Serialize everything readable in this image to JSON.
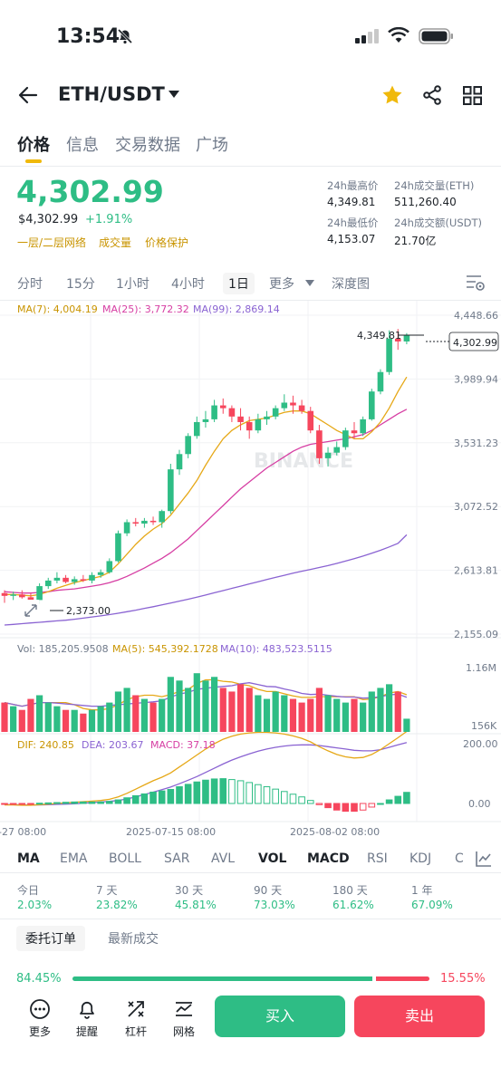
{
  "status": {
    "time": "13:54"
  },
  "header": {
    "pair": "ETH/USDT"
  },
  "tabs": [
    "价格",
    "信息",
    "交易数据",
    "广场"
  ],
  "price": {
    "last": "4,302.99",
    "usd": "$4,302.99",
    "change": "+1.91%",
    "links": [
      "一层/二层网络",
      "成交量",
      "价格保护"
    ]
  },
  "stats": {
    "high_label": "24h最高价",
    "high": "4,349.81",
    "vol_label": "24h成交量(ETH)",
    "vol": "511,260.40",
    "low_label": "24h最低价",
    "low": "4,153.07",
    "amount_label": "24h成交额(USDT)",
    "amount": "21.70亿"
  },
  "timeframes": [
    "分时",
    "15分",
    "1小时",
    "4小时",
    "1日",
    "更多",
    "深度图"
  ],
  "active_timeframe": "1日",
  "chart_legend": {
    "ma7": "MA(7): 4,004.19",
    "ma25": "MA(25): 3,772.32",
    "ma99": "MA(99): 2,869.14",
    "vol": "Vol: 185,205.9508",
    "vol_ma5": "MA(5): 545,392.1728",
    "vol_ma10": "MA(10): 483,523.5115",
    "dif": "DIF: 240.85",
    "dea": "DEA: 203.67",
    "macd": "MACD: 37.18"
  },
  "chart_labels": {
    "watermark": "BINANCE",
    "high_marker": "4,349.81",
    "low_marker": "2,373.00",
    "current": "4,302.99",
    "x_left": "-27 08:00",
    "x_mid": "2025-07-15 08:00",
    "x_right": "2025-08-02 08:00"
  },
  "chart_data": {
    "type": "candlestick",
    "y_ticks": [
      "4,448.66",
      "3,989.94",
      "3,531.23",
      "3,072.52",
      "2,613.81",
      "2,155.09"
    ],
    "y_range": [
      2155.09,
      4448.66
    ],
    "vol_ticks": [
      "1.16M",
      "156K"
    ],
    "macd_ticks": [
      "200.00",
      "0.00"
    ],
    "candles": [
      [
        2450,
        2470,
        2380,
        2430
      ],
      [
        2430,
        2460,
        2400,
        2440
      ],
      [
        2440,
        2470,
        2410,
        2420
      ],
      [
        2420,
        2450,
        2390,
        2400
      ],
      [
        2400,
        2520,
        2373,
        2500
      ],
      [
        2500,
        2560,
        2480,
        2540
      ],
      [
        2540,
        2600,
        2520,
        2560
      ],
      [
        2560,
        2580,
        2520,
        2530
      ],
      [
        2530,
        2570,
        2510,
        2550
      ],
      [
        2550,
        2580,
        2530,
        2540
      ],
      [
        2540,
        2600,
        2520,
        2580
      ],
      [
        2580,
        2620,
        2560,
        2600
      ],
      [
        2600,
        2700,
        2590,
        2680
      ],
      [
        2680,
        2900,
        2670,
        2880
      ],
      [
        2880,
        2980,
        2860,
        2960
      ],
      [
        2960,
        2990,
        2930,
        2950
      ],
      [
        2950,
        2990,
        2920,
        2970
      ],
      [
        2970,
        3000,
        2940,
        2960
      ],
      [
        2960,
        3050,
        2920,
        3040
      ],
      [
        3040,
        3380,
        3020,
        3340
      ],
      [
        3340,
        3480,
        3300,
        3450
      ],
      [
        3450,
        3600,
        3420,
        3580
      ],
      [
        3580,
        3720,
        3560,
        3680
      ],
      [
        3680,
        3760,
        3640,
        3700
      ],
      [
        3700,
        3840,
        3680,
        3800
      ],
      [
        3800,
        3850,
        3740,
        3780
      ],
      [
        3780,
        3800,
        3680,
        3720
      ],
      [
        3720,
        3780,
        3620,
        3680
      ],
      [
        3680,
        3720,
        3560,
        3620
      ],
      [
        3620,
        3740,
        3600,
        3700
      ],
      [
        3700,
        3760,
        3660,
        3720
      ],
      [
        3720,
        3800,
        3700,
        3780
      ],
      [
        3780,
        3880,
        3760,
        3820
      ],
      [
        3820,
        3870,
        3740,
        3800
      ],
      [
        3800,
        3840,
        3740,
        3760
      ],
      [
        3760,
        3790,
        3600,
        3620
      ],
      [
        3620,
        3660,
        3380,
        3420
      ],
      [
        3420,
        3500,
        3360,
        3460
      ],
      [
        3460,
        3540,
        3440,
        3500
      ],
      [
        3500,
        3640,
        3480,
        3620
      ],
      [
        3620,
        3680,
        3560,
        3600
      ],
      [
        3600,
        3720,
        3580,
        3700
      ],
      [
        3700,
        3920,
        3690,
        3900
      ],
      [
        3900,
        4060,
        3880,
        4040
      ],
      [
        4040,
        4340,
        4020,
        4280
      ],
      [
        4280,
        4349.81,
        4200,
        4260
      ],
      [
        4260,
        4320,
        4240,
        4302.99
      ]
    ],
    "ma7": [
      2440,
      2440,
      2435,
      2430,
      2440,
      2460,
      2485,
      2505,
      2525,
      2540,
      2555,
      2570,
      2600,
      2660,
      2730,
      2800,
      2860,
      2910,
      2950,
      3010,
      3090,
      3170,
      3260,
      3370,
      3470,
      3560,
      3620,
      3660,
      3690,
      3700,
      3710,
      3730,
      3750,
      3760,
      3760,
      3740,
      3700,
      3660,
      3620,
      3590,
      3560,
      3560,
      3610,
      3680,
      3780,
      3900,
      4004.19
    ],
    "ma25": [
      2460,
      2455,
      2450,
      2450,
      2455,
      2460,
      2470,
      2475,
      2480,
      2490,
      2500,
      2510,
      2525,
      2545,
      2570,
      2600,
      2630,
      2665,
      2700,
      2740,
      2790,
      2840,
      2900,
      2960,
      3020,
      3080,
      3140,
      3200,
      3250,
      3300,
      3350,
      3390,
      3430,
      3470,
      3500,
      3520,
      3530,
      3540,
      3550,
      3560,
      3575,
      3590,
      3620,
      3660,
      3700,
      3740,
      3772.32
    ],
    "ma99": [
      2220,
      2225,
      2230,
      2235,
      2240,
      2245,
      2250,
      2255,
      2262,
      2270,
      2278,
      2286,
      2295,
      2305,
      2316,
      2327,
      2340,
      2352,
      2365,
      2378,
      2392,
      2406,
      2420,
      2436,
      2452,
      2468,
      2484,
      2500,
      2516,
      2532,
      2548,
      2563,
      2578,
      2593,
      2607,
      2620,
      2634,
      2648,
      2663,
      2680,
      2698,
      2716,
      2736,
      2758,
      2782,
      2808,
      2869.14
    ],
    "volume_levels": [
      0.4,
      0.35,
      0.3,
      0.45,
      0.5,
      0.4,
      0.35,
      0.3,
      0.3,
      0.25,
      0.3,
      0.35,
      0.4,
      0.55,
      0.6,
      0.5,
      0.45,
      0.4,
      0.45,
      0.75,
      0.7,
      0.6,
      0.8,
      0.7,
      0.75,
      0.6,
      0.55,
      0.65,
      0.6,
      0.5,
      0.45,
      0.55,
      0.5,
      0.45,
      0.4,
      0.45,
      0.6,
      0.5,
      0.45,
      0.4,
      0.45,
      0.4,
      0.55,
      0.6,
      0.65,
      0.55,
      0.18
    ],
    "dif": [
      -5,
      -5,
      -6,
      -6,
      -4,
      -2,
      0,
      2,
      4,
      6,
      8,
      10,
      14,
      22,
      34,
      48,
      62,
      76,
      88,
      102,
      122,
      142,
      162,
      182,
      200,
      215,
      225,
      232,
      236,
      238,
      238,
      236,
      232,
      226,
      218,
      206,
      190,
      176,
      164,
      156,
      152,
      154,
      164,
      180,
      200,
      220,
      240.85
    ],
    "dea": [
      -4,
      -4,
      -5,
      -5,
      -5,
      -4,
      -3,
      -2,
      -1,
      1,
      3,
      5,
      7,
      10,
      15,
      22,
      30,
      38,
      46,
      55,
      66,
      78,
      90,
      104,
      118,
      132,
      145,
      156,
      166,
      175,
      182,
      188,
      192,
      195,
      196,
      196,
      194,
      190,
      186,
      182,
      178,
      176,
      176,
      180,
      188,
      196,
      203.67
    ]
  },
  "indicators": [
    "MA",
    "EMA",
    "BOLL",
    "SAR",
    "AVL",
    "VOL",
    "MACD",
    "RSI",
    "KDJ",
    "C"
  ],
  "performance": [
    {
      "label": "今日",
      "value": "2.03%"
    },
    {
      "label": "7 天",
      "value": "23.82%"
    },
    {
      "label": "30 天",
      "value": "45.81%"
    },
    {
      "label": "90 天",
      "value": "73.03%"
    },
    {
      "label": "180 天",
      "value": "61.62%"
    },
    {
      "label": "1 年",
      "value": "67.09%"
    }
  ],
  "orderbook_tabs": [
    "委托订单",
    "最新成交"
  ],
  "ratio": {
    "buy": "84.45%",
    "sell": "15.55%",
    "buy_fraction": 0.8445
  },
  "bottom": {
    "more": "更多",
    "alert": "提醒",
    "leverage": "杠杆",
    "grid": "网格",
    "buy": "买入",
    "sell": "卖出"
  },
  "colors": {
    "up": "#2ebd85",
    "down": "#f6465d",
    "accent": "#f0b90b"
  }
}
